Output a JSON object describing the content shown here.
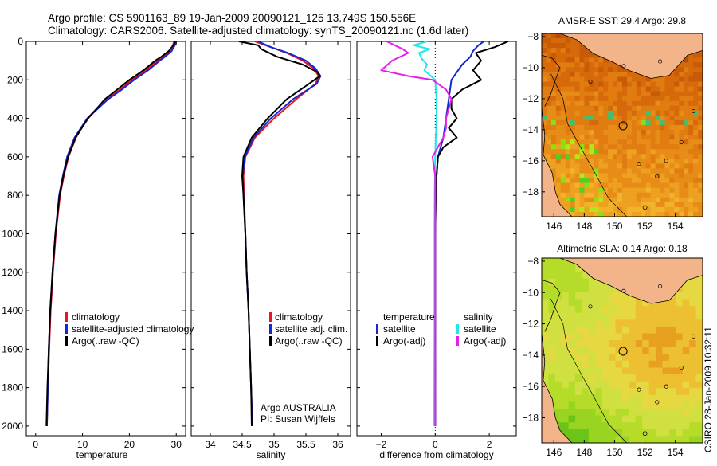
{
  "header": {
    "line1": "Argo profile: CS 5901163_89 19-Jan-2009 20090121_125 13.749S 150.556E",
    "line2": "Climatology: CARS2006. Satellite-adjusted climatology: synTS_20090121.nc (1.6d later)"
  },
  "footer_vertical": "CSIRO 28-Jan-2009 10:32:11",
  "colors": {
    "red": "#e8141e",
    "blue": "#1428d2",
    "black": "#000000",
    "cyan": "#22e6e6",
    "magenta": "#e61ee6"
  },
  "chart_data": [
    {
      "id": "temperature",
      "type": "line",
      "xlabel": "temperature",
      "ylabel": "",
      "xlim": [
        -2,
        32
      ],
      "ylim": [
        2050,
        0
      ],
      "xticks": [
        0,
        10,
        20,
        30
      ],
      "yticks": [
        0,
        200,
        400,
        600,
        800,
        1000,
        1200,
        1400,
        1600,
        1800,
        2000
      ],
      "legend": [
        "climatology",
        "satellite-adjusted climatology",
        "Argo(..raw -QC)"
      ],
      "series": [
        {
          "name": "climatology",
          "color": "red",
          "depth": [
            0,
            20,
            50,
            80,
            100,
            150,
            200,
            250,
            300,
            400,
            500,
            600,
            700,
            800,
            1000,
            1200,
            1400,
            1600,
            1800,
            2000
          ],
          "values": [
            29.5,
            29.3,
            28.6,
            27.2,
            26.0,
            23.5,
            20.5,
            18.0,
            15.0,
            11.0,
            8.6,
            7.0,
            6.0,
            5.2,
            4.3,
            3.7,
            3.2,
            2.9,
            2.6,
            2.4
          ]
        },
        {
          "name": "satellite-adjusted climatology",
          "color": "blue",
          "depth": [
            0,
            20,
            50,
            80,
            100,
            150,
            200,
            250,
            300,
            400,
            500,
            600,
            700,
            800,
            1000,
            1200,
            1400,
            1600,
            1800,
            2000
          ],
          "values": [
            30.0,
            29.7,
            29.0,
            27.6,
            26.5,
            24.0,
            21.0,
            18.4,
            15.5,
            11.0,
            8.3,
            6.7,
            5.8,
            5.0,
            4.2,
            3.6,
            3.1,
            2.8,
            2.6,
            2.4
          ]
        },
        {
          "name": "Argo(..raw -QC)",
          "color": "black",
          "depth": [
            0,
            20,
            50,
            80,
            100,
            150,
            200,
            250,
            300,
            400,
            500,
            600,
            700,
            800,
            1000,
            1200,
            1400,
            1600,
            1800,
            2000
          ],
          "values": [
            29.8,
            29.4,
            28.4,
            26.8,
            25.5,
            23.0,
            20.0,
            17.4,
            14.8,
            11.2,
            8.5,
            6.9,
            5.9,
            5.1,
            4.2,
            3.6,
            3.1,
            2.8,
            2.5,
            2.3
          ]
        }
      ]
    },
    {
      "id": "salinity",
      "type": "line",
      "xlabel": "salinity",
      "ylabel": "",
      "xlim": [
        33.7,
        36.2
      ],
      "ylim": [
        2050,
        0
      ],
      "xticks": [
        34,
        34.5,
        35,
        35.5,
        36
      ],
      "legend": [
        "climatology",
        "satellite adj. clim.",
        "Argo(..raw -QC)"
      ],
      "annotation": [
        "Argo AUSTRALIA",
        "PI: Susan Wijffels"
      ],
      "series": [
        {
          "name": "climatology",
          "color": "red",
          "depth": [
            0,
            30,
            60,
            100,
            140,
            180,
            220,
            300,
            400,
            500,
            600,
            700,
            800,
            1000,
            1200,
            1400,
            1600,
            1800,
            2000
          ],
          "values": [
            34.7,
            34.95,
            35.2,
            35.45,
            35.62,
            35.7,
            35.65,
            35.35,
            35.0,
            34.7,
            34.55,
            34.52,
            34.53,
            34.55,
            34.57,
            34.6,
            34.62,
            34.64,
            34.66
          ]
        },
        {
          "name": "satellite adj. clim.",
          "color": "blue",
          "depth": [
            0,
            30,
            60,
            100,
            140,
            180,
            220,
            300,
            400,
            500,
            600,
            700,
            800,
            1000,
            1200,
            1400,
            1600,
            1800,
            2000
          ],
          "values": [
            34.75,
            34.95,
            35.22,
            35.5,
            35.65,
            35.73,
            35.67,
            35.3,
            34.95,
            34.68,
            34.54,
            34.51,
            34.52,
            34.55,
            34.57,
            34.6,
            34.62,
            34.64,
            34.66
          ]
        },
        {
          "name": "Argo(..raw -QC)",
          "color": "black",
          "depth": [
            0,
            20,
            40,
            80,
            120,
            160,
            180,
            220,
            300,
            400,
            500,
            600,
            700,
            800,
            1000,
            1200,
            1400,
            1600,
            1800,
            2000
          ],
          "values": [
            34.45,
            34.75,
            34.8,
            35.05,
            35.45,
            35.68,
            35.72,
            35.55,
            35.2,
            34.9,
            34.65,
            34.52,
            34.5,
            34.52,
            34.55,
            34.57,
            34.6,
            34.62,
            34.64,
            34.65
          ]
        }
      ]
    },
    {
      "id": "difference",
      "type": "line",
      "xlabel": "difference from climatology",
      "ylabel": "",
      "xlim": [
        -2.9,
        3
      ],
      "ylim": [
        2050,
        0
      ],
      "xticks": [
        -2,
        0,
        2
      ],
      "legend_left": [
        "temperature",
        "satellite",
        "Argo(-adj)"
      ],
      "legend_right": [
        "salinity",
        "satellite",
        "Argo(-adj)"
      ],
      "series": [
        {
          "name": "temperature satellite",
          "color": "blue",
          "depth": [
            0,
            20,
            50,
            80,
            120,
            200,
            300,
            400,
            500,
            600,
            700,
            800,
            1000,
            1500,
            2000
          ],
          "values": [
            1.8,
            1.6,
            1.4,
            1.3,
            1.0,
            0.6,
            0.5,
            0.4,
            0.3,
            0.1,
            0.05,
            0.02,
            0.0,
            0.0,
            0.0
          ]
        },
        {
          "name": "temperature Argo(-adj)",
          "color": "black",
          "depth": [
            0,
            30,
            60,
            100,
            150,
            200,
            250,
            300,
            350,
            400,
            450,
            500,
            550,
            600,
            700,
            800,
            1000,
            1500,
            2000
          ],
          "values": [
            2.7,
            2.2,
            1.5,
            1.7,
            1.4,
            1.7,
            1.0,
            0.6,
            0.6,
            0.8,
            0.5,
            0.8,
            0.3,
            0.1,
            0.05,
            0.02,
            0.0,
            0.0,
            0.0
          ]
        },
        {
          "name": "salinity satellite",
          "color": "cyan",
          "depth": [
            0,
            20,
            40,
            60,
            90,
            120,
            150,
            200,
            300,
            400,
            500,
            600,
            800,
            1000,
            1500,
            2000
          ],
          "values": [
            -0.3,
            -0.8,
            -0.2,
            -0.6,
            -0.5,
            -0.3,
            -0.4,
            0.0,
            0.05,
            0.05,
            0.02,
            0.0,
            -0.02,
            -0.03,
            -0.03,
            -0.04
          ]
        },
        {
          "name": "salinity Argo(-adj)",
          "color": "magenta",
          "depth": [
            0,
            20,
            40,
            60,
            100,
            150,
            180,
            200,
            250,
            300,
            350,
            400,
            450,
            500,
            550,
            600,
            650,
            700,
            800,
            1000,
            1500,
            2000
          ],
          "values": [
            -1.8,
            -1.5,
            -1.2,
            -1.0,
            -1.6,
            -2.0,
            -1.0,
            -0.1,
            0.4,
            0.6,
            0.5,
            0.4,
            0.4,
            0.3,
            0.1,
            -0.1,
            -0.05,
            0.0,
            0.0,
            0.0,
            0.0,
            0.0
          ]
        }
      ]
    },
    {
      "id": "sst_map",
      "type": "heatmap",
      "title": "AMSR-E SST: 29.4 Argo: 29.8",
      "xticks": [
        146,
        148,
        150,
        152,
        154
      ],
      "yticks": [
        -8,
        -10,
        -12,
        -14,
        -16,
        -18
      ],
      "xlim": [
        145.2,
        155.8
      ],
      "ylim": [
        -19.6,
        -7.8
      ],
      "float_position": {
        "lon": 150.556,
        "lat": -13.749
      }
    },
    {
      "id": "sla_map",
      "type": "heatmap",
      "title": "Altimetric SLA: 0.14 Argo: 0.18",
      "xticks": [
        146,
        148,
        150,
        152,
        154
      ],
      "yticks": [
        -8,
        -10,
        -12,
        -14,
        -16,
        -18
      ],
      "xlim": [
        145.2,
        155.8
      ],
      "ylim": [
        -19.6,
        -7.8
      ],
      "float_position": {
        "lon": 150.556,
        "lat": -13.749
      }
    }
  ]
}
